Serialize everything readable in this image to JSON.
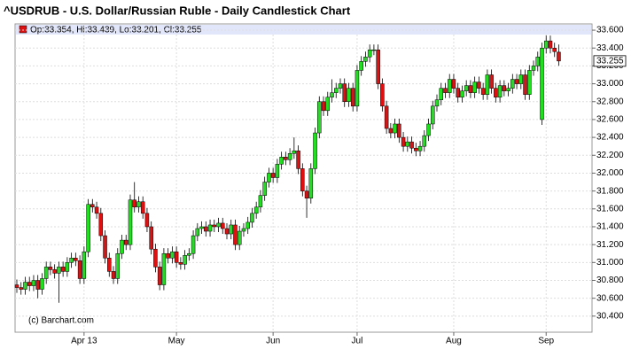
{
  "chart_data": {
    "type": "candlestick",
    "title": "^USDRUB - U.S. Dollar/Russian Ruble - Daily Candlestick Chart",
    "legend_text": "Op:33.354, Hi:33.439, Lo:33.201, Cl:33.255",
    "watermark": "(c) Barchart.com",
    "up_color": "#22dd22",
    "down_color": "#dd1111",
    "grid": true,
    "ylim": [
      30.22,
      33.67
    ],
    "yticks": [
      {
        "value": 30.4,
        "label": "30.400"
      },
      {
        "value": 30.6,
        "label": "30.600"
      },
      {
        "value": 30.8,
        "label": "30.800"
      },
      {
        "value": 31.0,
        "label": "31.000"
      },
      {
        "value": 31.2,
        "label": "31.200"
      },
      {
        "value": 31.4,
        "label": "31.400"
      },
      {
        "value": 31.6,
        "label": "31.600"
      },
      {
        "value": 31.8,
        "label": "31.800"
      },
      {
        "value": 32.0,
        "label": "32.000"
      },
      {
        "value": 32.2,
        "label": "32.200"
      },
      {
        "value": 32.4,
        "label": "32.400"
      },
      {
        "value": 32.6,
        "label": "32.600"
      },
      {
        "value": 32.8,
        "label": "32.800"
      },
      {
        "value": 33.0,
        "label": "33.000"
      },
      {
        "value": 33.2,
        "label": "33.200"
      },
      {
        "value": 33.4,
        "label": "33.400"
      },
      {
        "value": 33.6,
        "label": "33.600"
      }
    ],
    "categories": [
      null,
      null,
      null,
      null,
      null,
      null,
      null,
      null,
      null,
      null,
      null,
      null,
      null,
      null,
      null,
      null,
      "Apr 13",
      null,
      null,
      null,
      null,
      null,
      null,
      null,
      null,
      null,
      null,
      null,
      null,
      null,
      null,
      null,
      null,
      null,
      null,
      null,
      null,
      null,
      "May",
      null,
      null,
      null,
      null,
      null,
      null,
      null,
      null,
      null,
      null,
      null,
      null,
      null,
      null,
      null,
      null,
      null,
      null,
      null,
      null,
      null,
      null,
      "Jun",
      null,
      null,
      null,
      null,
      null,
      null,
      null,
      null,
      null,
      null,
      null,
      null,
      null,
      null,
      null,
      null,
      null,
      null,
      null,
      "Jul",
      null,
      null,
      null,
      null,
      null,
      null,
      null,
      null,
      null,
      null,
      null,
      null,
      null,
      null,
      null,
      null,
      null,
      null,
      null,
      null,
      null,
      null,
      "Aug",
      null,
      null,
      null,
      null,
      null,
      null,
      null,
      null,
      null,
      null,
      null,
      null,
      null,
      null,
      null,
      null,
      null,
      null,
      null,
      null,
      null,
      "Sep",
      null,
      null,
      null
    ],
    "open": [
      30.75,
      30.72,
      30.7,
      30.78,
      30.74,
      30.8,
      30.7,
      30.82,
      30.95,
      30.92,
      30.88,
      30.95,
      30.9,
      31.0,
      31.05,
      31.02,
      30.82,
      31.12,
      31.65,
      31.62,
      31.55,
      31.3,
      31.05,
      30.9,
      30.82,
      31.1,
      31.25,
      31.2,
      31.7,
      31.62,
      31.68,
      31.55,
      31.4,
      31.15,
      30.95,
      30.75,
      31.1,
      31.05,
      31.12,
      31.0,
      30.98,
      31.08,
      31.1,
      31.3,
      31.38,
      31.4,
      31.35,
      31.42,
      31.4,
      31.44,
      31.38,
      31.32,
      31.42,
      31.2,
      31.35,
      31.38,
      31.45,
      31.55,
      31.62,
      31.75,
      31.9,
      32.0,
      31.95,
      32.1,
      32.18,
      32.15,
      32.22,
      32.25,
      32.05,
      31.8,
      31.72,
      32.05,
      32.45,
      32.8,
      32.7,
      32.85,
      32.9,
      32.95,
      33.0,
      32.8,
      32.95,
      32.75,
      33.15,
      33.25,
      33.3,
      33.38,
      33.38,
      33.0,
      32.75,
      32.5,
      32.45,
      32.55,
      32.4,
      32.3,
      32.35,
      32.28,
      32.25,
      32.3,
      32.42,
      32.55,
      32.75,
      32.82,
      32.95,
      32.9,
      33.05,
      32.95,
      32.85,
      32.92,
      32.98,
      32.9,
      33.02,
      32.95,
      32.88,
      33.1,
      32.95,
      32.85,
      32.98,
      32.92,
      32.95,
      33.05,
      33.0,
      33.1,
      32.88,
      33.15,
      33.2,
      32.6,
      33.4,
      33.48,
      33.4,
      33.354
    ],
    "high": [
      30.81,
      30.78,
      30.84,
      30.84,
      30.86,
      30.86,
      30.88,
      31.01,
      31.01,
      30.98,
      31.01,
      31.01,
      31.06,
      31.11,
      31.11,
      31.08,
      31.18,
      31.71,
      31.71,
      31.68,
      31.61,
      31.36,
      31.11,
      30.96,
      31.16,
      31.31,
      31.31,
      31.76,
      31.9,
      31.74,
      31.74,
      31.61,
      31.46,
      31.21,
      31.01,
      31.16,
      31.16,
      31.18,
      31.18,
      31.06,
      31.14,
      31.16,
      31.36,
      31.44,
      31.46,
      31.46,
      31.48,
      31.48,
      31.5,
      31.5,
      31.44,
      31.48,
      31.48,
      31.41,
      31.44,
      31.51,
      31.61,
      31.68,
      31.81,
      31.96,
      32.06,
      32.06,
      32.16,
      32.24,
      32.24,
      32.28,
      32.4,
      32.31,
      32.11,
      31.86,
      32.11,
      32.51,
      32.86,
      32.86,
      32.91,
      33.05,
      33.01,
      33.06,
      33.06,
      33.01,
      33.01,
      33.21,
      33.31,
      33.36,
      33.44,
      33.44,
      33.44,
      33.06,
      32.81,
      32.56,
      32.61,
      32.61,
      32.46,
      32.41,
      32.41,
      32.34,
      32.36,
      32.48,
      32.61,
      32.81,
      32.88,
      33.01,
      33.01,
      33.11,
      33.11,
      33.01,
      32.98,
      33.04,
      33.04,
      33.08,
      33.08,
      33.01,
      33.16,
      33.16,
      33.01,
      33.04,
      33.04,
      33.01,
      33.11,
      33.11,
      33.16,
      33.16,
      33.21,
      33.26,
      33.36,
      33.46,
      33.54,
      33.54,
      33.46,
      33.439
    ],
    "low": [
      30.66,
      30.64,
      30.64,
      30.68,
      30.68,
      30.6,
      30.64,
      30.76,
      30.86,
      30.82,
      30.55,
      30.84,
      30.84,
      30.94,
      30.96,
      30.76,
      30.76,
      31.06,
      31.56,
      31.49,
      31.24,
      30.99,
      30.84,
      30.76,
      30.76,
      31.04,
      31.14,
      31.14,
      31.56,
      31.56,
      31.49,
      31.34,
      31.09,
      30.89,
      30.69,
      30.69,
      30.99,
      30.99,
      30.94,
      30.92,
      30.92,
      31.02,
      31.04,
      31.24,
      31.32,
      31.29,
      31.29,
      31.34,
      31.34,
      31.32,
      31.26,
      31.26,
      31.14,
      31.14,
      31.29,
      31.32,
      31.39,
      31.49,
      31.56,
      31.69,
      31.84,
      31.89,
      31.89,
      32.04,
      32.09,
      32.09,
      32.16,
      31.99,
      31.74,
      31.5,
      31.66,
      31.99,
      32.39,
      32.64,
      32.64,
      32.79,
      32.84,
      32.89,
      32.74,
      32.74,
      32.69,
      32.69,
      33.09,
      33.19,
      33.24,
      33.32,
      32.94,
      32.69,
      32.44,
      32.39,
      32.39,
      32.34,
      32.24,
      32.24,
      32.22,
      32.19,
      32.19,
      32.24,
      32.36,
      32.49,
      32.69,
      32.76,
      32.84,
      32.84,
      32.89,
      32.79,
      32.79,
      32.86,
      32.84,
      32.84,
      32.89,
      32.82,
      32.82,
      32.89,
      32.79,
      32.79,
      32.86,
      32.86,
      32.89,
      32.94,
      32.94,
      32.82,
      32.82,
      33.09,
      33.14,
      32.54,
      33.34,
      33.34,
      33.3,
      33.201
    ],
    "close": [
      30.72,
      30.7,
      30.78,
      30.74,
      30.8,
      30.7,
      30.82,
      30.95,
      30.92,
      30.88,
      30.95,
      30.9,
      31.0,
      31.05,
      31.02,
      30.82,
      31.12,
      31.65,
      31.62,
      31.55,
      31.3,
      31.05,
      30.9,
      30.82,
      31.1,
      31.25,
      31.2,
      31.7,
      31.62,
      31.68,
      31.55,
      31.4,
      31.15,
      30.95,
      30.75,
      31.1,
      31.05,
      31.12,
      31.0,
      30.98,
      31.08,
      31.1,
      31.3,
      31.38,
      31.4,
      31.35,
      31.42,
      31.4,
      31.44,
      31.38,
      31.32,
      31.42,
      31.2,
      31.35,
      31.38,
      31.45,
      31.55,
      31.62,
      31.75,
      31.9,
      32.0,
      31.95,
      32.1,
      32.18,
      32.15,
      32.22,
      32.25,
      32.05,
      31.8,
      31.72,
      32.05,
      32.45,
      32.8,
      32.7,
      32.85,
      32.9,
      32.95,
      33.0,
      32.8,
      32.95,
      32.75,
      33.15,
      33.25,
      33.3,
      33.38,
      33.38,
      33.0,
      32.75,
      32.5,
      32.45,
      32.55,
      32.4,
      32.3,
      32.35,
      32.28,
      32.25,
      32.3,
      32.42,
      32.55,
      32.75,
      32.82,
      32.95,
      32.9,
      33.05,
      32.95,
      32.85,
      32.92,
      32.98,
      32.9,
      33.02,
      32.95,
      32.88,
      33.1,
      32.95,
      32.85,
      32.98,
      32.92,
      32.95,
      33.05,
      33.0,
      33.1,
      32.88,
      33.15,
      33.2,
      33.3,
      33.4,
      33.48,
      33.4,
      33.36,
      33.255
    ]
  }
}
